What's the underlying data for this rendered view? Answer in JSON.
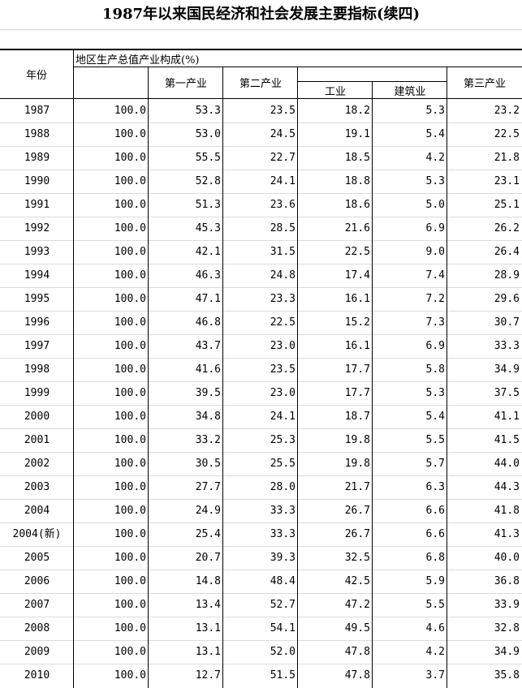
{
  "title": "1987年以来国民经济和社会发展主要指标(续四)",
  "headers": {
    "year": "年份",
    "group": "地区生产总值产业构成(%)",
    "primary": "第一产业",
    "secondary": "第二产业",
    "industry": "工业",
    "construction": "建筑业",
    "tertiary": "第三产业"
  },
  "rows": [
    {
      "year": "1987",
      "total": "100.0",
      "primary": "53.3",
      "secondary": "23.5",
      "industry": "18.2",
      "construction": "5.3",
      "tertiary": "23.2"
    },
    {
      "year": "1988",
      "total": "100.0",
      "primary": "53.0",
      "secondary": "24.5",
      "industry": "19.1",
      "construction": "5.4",
      "tertiary": "22.5"
    },
    {
      "year": "1989",
      "total": "100.0",
      "primary": "55.5",
      "secondary": "22.7",
      "industry": "18.5",
      "construction": "4.2",
      "tertiary": "21.8"
    },
    {
      "year": "1990",
      "total": "100.0",
      "primary": "52.8",
      "secondary": "24.1",
      "industry": "18.8",
      "construction": "5.3",
      "tertiary": "23.1"
    },
    {
      "year": "1991",
      "total": "100.0",
      "primary": "51.3",
      "secondary": "23.6",
      "industry": "18.6",
      "construction": "5.0",
      "tertiary": "25.1"
    },
    {
      "year": "1992",
      "total": "100.0",
      "primary": "45.3",
      "secondary": "28.5",
      "industry": "21.6",
      "construction": "6.9",
      "tertiary": "26.2"
    },
    {
      "year": "1993",
      "total": "100.0",
      "primary": "42.1",
      "secondary": "31.5",
      "industry": "22.5",
      "construction": "9.0",
      "tertiary": "26.4"
    },
    {
      "year": "1994",
      "total": "100.0",
      "primary": "46.3",
      "secondary": "24.8",
      "industry": "17.4",
      "construction": "7.4",
      "tertiary": "28.9"
    },
    {
      "year": "1995",
      "total": "100.0",
      "primary": "47.1",
      "secondary": "23.3",
      "industry": "16.1",
      "construction": "7.2",
      "tertiary": "29.6"
    },
    {
      "year": "1996",
      "total": "100.0",
      "primary": "46.8",
      "secondary": "22.5",
      "industry": "15.2",
      "construction": "7.3",
      "tertiary": "30.7"
    },
    {
      "year": "1997",
      "total": "100.0",
      "primary": "43.7",
      "secondary": "23.0",
      "industry": "16.1",
      "construction": "6.9",
      "tertiary": "33.3"
    },
    {
      "year": "1998",
      "total": "100.0",
      "primary": "41.6",
      "secondary": "23.5",
      "industry": "17.7",
      "construction": "5.8",
      "tertiary": "34.9"
    },
    {
      "year": "1999",
      "total": "100.0",
      "primary": "39.5",
      "secondary": "23.0",
      "industry": "17.7",
      "construction": "5.3",
      "tertiary": "37.5"
    },
    {
      "year": "2000",
      "total": "100.0",
      "primary": "34.8",
      "secondary": "24.1",
      "industry": "18.7",
      "construction": "5.4",
      "tertiary": "41.1"
    },
    {
      "year": "2001",
      "total": "100.0",
      "primary": "33.2",
      "secondary": "25.3",
      "industry": "19.8",
      "construction": "5.5",
      "tertiary": "41.5"
    },
    {
      "year": "2002",
      "total": "100.0",
      "primary": "30.5",
      "secondary": "25.5",
      "industry": "19.8",
      "construction": "5.7",
      "tertiary": "44.0"
    },
    {
      "year": "2003",
      "total": "100.0",
      "primary": "27.7",
      "secondary": "28.0",
      "industry": "21.7",
      "construction": "6.3",
      "tertiary": "44.3"
    },
    {
      "year": "2004",
      "total": "100.0",
      "primary": "24.9",
      "secondary": "33.3",
      "industry": "26.7",
      "construction": "6.6",
      "tertiary": "41.8"
    },
    {
      "year": "2004(新)",
      "total": "100.0",
      "primary": "25.4",
      "secondary": "33.3",
      "industry": "26.7",
      "construction": "6.6",
      "tertiary": "41.3"
    },
    {
      "year": "2005",
      "total": "100.0",
      "primary": "20.7",
      "secondary": "39.3",
      "industry": "32.5",
      "construction": "6.8",
      "tertiary": "40.0"
    },
    {
      "year": "2006",
      "total": "100.0",
      "primary": "14.8",
      "secondary": "48.4",
      "industry": "42.5",
      "construction": "5.9",
      "tertiary": "36.8"
    },
    {
      "year": "2007",
      "total": "100.0",
      "primary": "13.4",
      "secondary": "52.7",
      "industry": "47.2",
      "construction": "5.5",
      "tertiary": "33.9"
    },
    {
      "year": "2008",
      "total": "100.0",
      "primary": "13.1",
      "secondary": "54.1",
      "industry": "49.5",
      "construction": "4.6",
      "tertiary": "32.8"
    },
    {
      "year": "2009",
      "total": "100.0",
      "primary": "13.1",
      "secondary": "52.0",
      "industry": "47.8",
      "construction": "4.2",
      "tertiary": "34.9"
    },
    {
      "year": "2010",
      "total": "100.0",
      "primary": "12.7",
      "secondary": "51.5",
      "industry": "47.8",
      "construction": "3.7",
      "tertiary": "35.8"
    }
  ]
}
